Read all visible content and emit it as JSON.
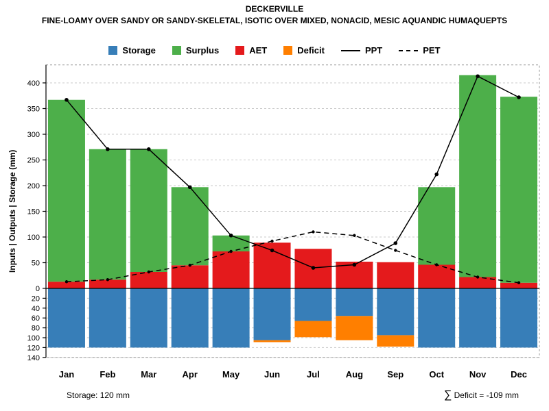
{
  "chart_data": {
    "type": "bar",
    "title": "DECKERVILLE",
    "subtitle": "FINE-LOAMY OVER SANDY OR SANDY-SKELETAL, ISOTIC OVER MIXED, NONACID, MESIC AQUANDIC HUMAQUEPTS",
    "ylabel": "Inputs | Outputs | Storage (mm)",
    "categories": [
      "Jan",
      "Feb",
      "Mar",
      "Apr",
      "May",
      "Jun",
      "Jul",
      "Aug",
      "Sep",
      "Oct",
      "Nov",
      "Dec"
    ],
    "series": [
      {
        "name": "AET",
        "kind": "bar-up",
        "values": [
          13,
          17,
          32,
          45,
          72,
          89,
          77,
          52,
          51,
          46,
          22,
          11
        ]
      },
      {
        "name": "Surplus",
        "kind": "bar-up-stacked",
        "values": [
          354,
          254,
          239,
          152,
          31,
          0,
          0,
          0,
          0,
          151,
          393,
          362
        ]
      },
      {
        "name": "Storage",
        "kind": "bar-down",
        "values": [
          120,
          120,
          120,
          120,
          120,
          105,
          66,
          56,
          95,
          120,
          120,
          120
        ]
      },
      {
        "name": "Deficit",
        "kind": "bar-down-stacked",
        "values": [
          0,
          0,
          0,
          0,
          0,
          4,
          33,
          49,
          23,
          0,
          0,
          0
        ]
      },
      {
        "name": "PPT",
        "kind": "line-solid",
        "values": [
          367,
          271,
          271,
          197,
          103,
          74,
          40,
          46,
          88,
          222,
          413,
          372
        ]
      },
      {
        "name": "PET",
        "kind": "line-dashed",
        "values": [
          13,
          17,
          32,
          45,
          72,
          92,
          110,
          103,
          74,
          46,
          22,
          11
        ]
      }
    ],
    "y_axis": {
      "up_ticks": [
        0,
        50,
        100,
        150,
        200,
        250,
        300,
        350,
        400
      ],
      "down_ticks": [
        20,
        40,
        60,
        80,
        100,
        120,
        140
      ],
      "up_max": 435,
      "down_max": 140
    },
    "grid": true,
    "legend_position": "top",
    "legend": [
      {
        "label": "Storage",
        "type": "box",
        "color_key": "storage"
      },
      {
        "label": "Surplus",
        "type": "box",
        "color_key": "surplus"
      },
      {
        "label": "AET",
        "type": "box",
        "color_key": "aet"
      },
      {
        "label": "Deficit",
        "type": "box",
        "color_key": "deficit"
      },
      {
        "label": "PPT",
        "type": "line-solid"
      },
      {
        "label": "PET",
        "type": "line-dashed"
      }
    ],
    "colors": {
      "storage": "#377EB8",
      "surplus": "#4DAF4A",
      "aet": "#E41A1C",
      "deficit": "#FF7F00",
      "line": "#000000",
      "grid": "#C8C8C8",
      "box": "#999999"
    },
    "annotations": {
      "storage_note": "Storage: 120 mm",
      "sigma": "∑",
      "deficit_note": " Deficit = -109 mm"
    }
  }
}
